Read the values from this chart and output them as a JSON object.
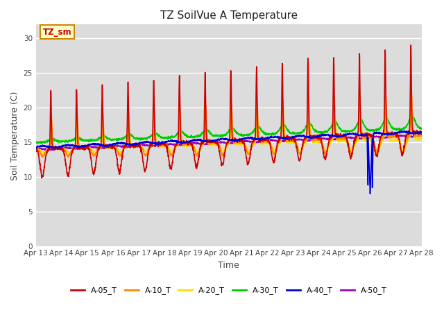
{
  "title": "TZ SoilVue A Temperature",
  "xlabel": "Time",
  "ylabel": "Soil Temperature (C)",
  "ylim": [
    0,
    32
  ],
  "yticks": [
    0,
    5,
    10,
    15,
    20,
    25,
    30
  ],
  "background_color": "#dcdcdc",
  "series_colors": {
    "A-05_T": "#cc0000",
    "A-10_T": "#ff8800",
    "A-20_T": "#ffdd00",
    "A-30_T": "#00cc00",
    "A-40_T": "#0000dd",
    "A-50_T": "#9900bb"
  },
  "xticklabels": [
    "Apr 13",
    "Apr 14",
    "Apr 15",
    "Apr 16",
    "Apr 17",
    "Apr 18",
    "Apr 19",
    "Apr 20",
    "Apr 21",
    "Apr 22",
    "Apr 23",
    "Apr 24",
    "Apr 25",
    "Apr 26",
    "Apr 27",
    "Apr 28"
  ],
  "grid_color": "#ffffff",
  "line_width": 1.2,
  "annotation_text": "TZ_sm"
}
